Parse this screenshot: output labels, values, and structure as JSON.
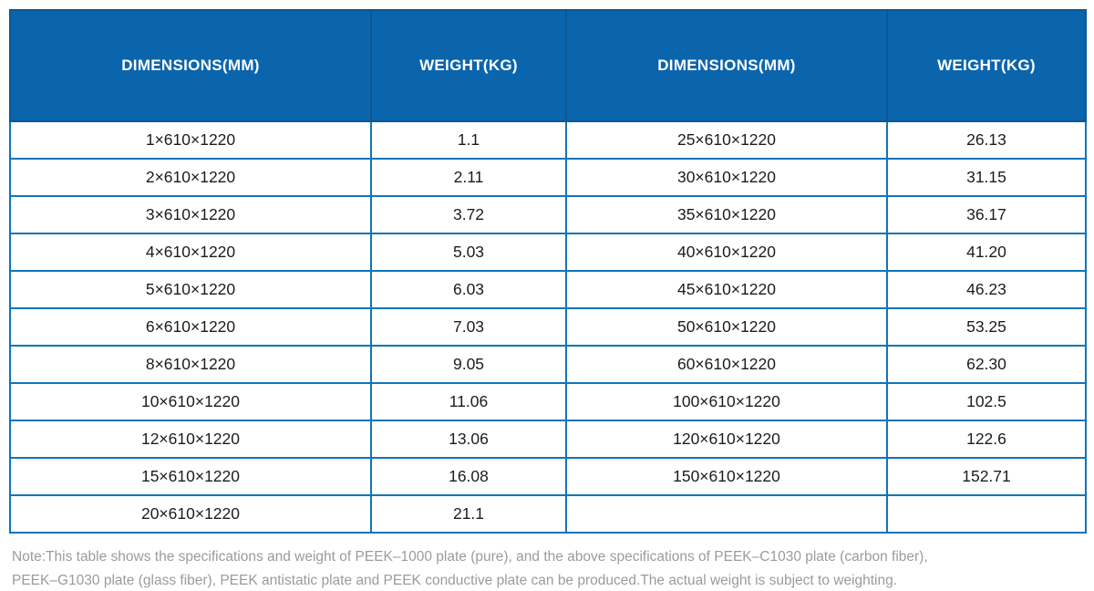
{
  "table": {
    "headers": [
      "DIMENSIONS(MM)",
      "WEIGHT(KG)",
      "DIMENSIONS(MM)",
      "WEIGHT(KG)"
    ],
    "rows": [
      [
        "1×610×1220",
        "1.1",
        "25×610×1220",
        "26.13"
      ],
      [
        "2×610×1220",
        "2.11",
        "30×610×1220",
        "31.15"
      ],
      [
        "3×610×1220",
        "3.72",
        "35×610×1220",
        "36.17"
      ],
      [
        "4×610×1220",
        "5.03",
        "40×610×1220",
        "41.20"
      ],
      [
        "5×610×1220",
        "6.03",
        "45×610×1220",
        "46.23"
      ],
      [
        "6×610×1220",
        "7.03",
        "50×610×1220",
        "53.25"
      ],
      [
        "8×610×1220",
        "9.05",
        "60×610×1220",
        "62.30"
      ],
      [
        "10×610×1220",
        "11.06",
        "100×610×1220",
        "102.5"
      ],
      [
        "12×610×1220",
        "13.06",
        "120×610×1220",
        "122.6"
      ],
      [
        "15×610×1220",
        "16.08",
        "150×610×1220",
        "152.71"
      ],
      [
        "20×610×1220",
        "21.1",
        "",
        ""
      ]
    ]
  },
  "note": {
    "line1": "Note:This table shows the specifications and weight of PEEK–1000 plate (pure), and the above specifications of PEEK–C1030 plate (carbon fiber),",
    "line2": "PEEK–G1030 plate (glass fiber), PEEK antistatic plate and PEEK conductive plate can be produced.The actual weight is subject to weighting."
  },
  "colors": {
    "header_bg": "#0b65ad",
    "header_border": "#0a5795",
    "header_text": "#ffffff",
    "body_border": "#0e75ba",
    "body_text": "#1c1c1c",
    "note_text": "#9b9b9b"
  }
}
